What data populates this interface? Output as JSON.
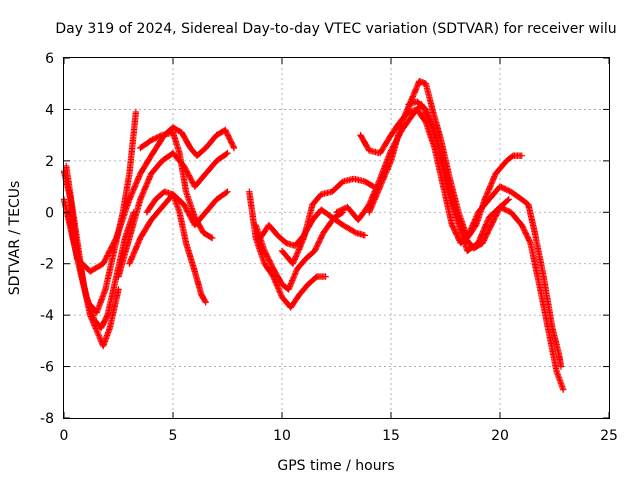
{
  "chart_data": {
    "type": "scatter",
    "title": "Day 319 of 2024, Sidereal Day-to-day VTEC variation (SDTVAR) for receiver wilu",
    "xlabel": "GPS time / hours",
    "ylabel": "SDTVAR / TECUs",
    "xlim": [
      0,
      25
    ],
    "ylim": [
      -8,
      6
    ],
    "xticks": [
      0,
      5,
      10,
      15,
      20,
      25
    ],
    "yticks": [
      -8,
      -6,
      -4,
      -2,
      0,
      2,
      4,
      6
    ],
    "xtick_labels": [
      "0",
      "5",
      "10",
      "15",
      "20",
      "25"
    ],
    "ytick_labels": [
      "-8",
      "-6",
      "-4",
      "-2",
      "0",
      "2",
      "4",
      "6"
    ],
    "grid": true,
    "marker": "plus",
    "color": "#ff0000",
    "series": [
      {
        "name": "track-1",
        "points": [
          [
            0.0,
            1.6
          ],
          [
            0.3,
            0.5
          ],
          [
            0.6,
            -1.5
          ],
          [
            1.0,
            -3.2
          ],
          [
            1.4,
            -4.2
          ],
          [
            1.7,
            -4.5
          ],
          [
            2.0,
            -4.0
          ],
          [
            2.4,
            -2.5
          ],
          [
            2.8,
            -1.0
          ],
          [
            3.2,
            0.0
          ]
        ]
      },
      {
        "name": "track-2",
        "points": [
          [
            0.1,
            1.8
          ],
          [
            0.5,
            -0.5
          ],
          [
            0.9,
            -2.8
          ],
          [
            1.2,
            -4.0
          ],
          [
            1.6,
            -4.8
          ],
          [
            1.8,
            -5.2
          ],
          [
            2.1,
            -4.5
          ],
          [
            2.5,
            -3.0
          ]
        ]
      },
      {
        "name": "track-3",
        "points": [
          [
            0.0,
            0.5
          ],
          [
            0.4,
            -1.0
          ],
          [
            0.8,
            -2.5
          ],
          [
            1.1,
            -3.5
          ],
          [
            1.5,
            -3.9
          ],
          [
            1.9,
            -3.0
          ],
          [
            2.3,
            -1.5
          ],
          [
            2.7,
            0.0
          ],
          [
            3.0,
            1.5
          ],
          [
            3.3,
            3.9
          ]
        ]
      },
      {
        "name": "track-4",
        "points": [
          [
            0.2,
            0.0
          ],
          [
            0.6,
            -1.8
          ],
          [
            1.2,
            -2.3
          ],
          [
            1.8,
            -2.0
          ],
          [
            2.4,
            -1.0
          ],
          [
            3.0,
            0.5
          ],
          [
            3.5,
            1.5
          ],
          [
            4.0,
            2.2
          ],
          [
            4.6,
            3.0
          ],
          [
            5.0,
            3.3
          ],
          [
            5.4,
            3.1
          ],
          [
            5.8,
            2.5
          ],
          [
            6.1,
            2.2
          ],
          [
            6.5,
            2.5
          ],
          [
            7.0,
            3.0
          ],
          [
            7.4,
            3.2
          ],
          [
            7.8,
            2.5
          ]
        ]
      },
      {
        "name": "track-5",
        "points": [
          [
            2.5,
            -2.5
          ],
          [
            3.0,
            -1.0
          ],
          [
            3.5,
            0.5
          ],
          [
            4.0,
            1.5
          ],
          [
            4.5,
            2.0
          ],
          [
            5.0,
            2.3
          ],
          [
            5.5,
            1.8
          ],
          [
            6.0,
            1.0
          ],
          [
            6.5,
            1.5
          ],
          [
            7.0,
            2.0
          ],
          [
            7.5,
            2.3
          ]
        ]
      },
      {
        "name": "track-6",
        "points": [
          [
            3.0,
            -2.0
          ],
          [
            3.5,
            -1.0
          ],
          [
            4.0,
            -0.3
          ],
          [
            4.5,
            0.2
          ],
          [
            5.0,
            0.7
          ],
          [
            5.5,
            0.3
          ],
          [
            6.0,
            -0.5
          ],
          [
            6.5,
            0.0
          ],
          [
            7.0,
            0.5
          ],
          [
            7.5,
            0.8
          ]
        ]
      },
      {
        "name": "track-7",
        "points": [
          [
            3.8,
            0.0
          ],
          [
            4.2,
            0.5
          ],
          [
            4.6,
            0.8
          ],
          [
            5.0,
            0.7
          ],
          [
            5.3,
            0.0
          ],
          [
            5.6,
            -1.2
          ],
          [
            6.0,
            -2.3
          ],
          [
            6.3,
            -3.2
          ],
          [
            6.5,
            -3.5
          ]
        ]
      },
      {
        "name": "track-8",
        "points": [
          [
            3.5,
            2.5
          ],
          [
            4.0,
            2.8
          ],
          [
            4.5,
            3.0
          ],
          [
            5.0,
            3.1
          ],
          [
            5.3,
            2.3
          ],
          [
            5.6,
            0.8
          ],
          [
            6.0,
            -0.2
          ],
          [
            6.4,
            -0.8
          ],
          [
            6.8,
            -1.0
          ]
        ]
      },
      {
        "name": "track-9",
        "points": [
          [
            8.5,
            0.8
          ],
          [
            8.8,
            -1.0
          ],
          [
            9.2,
            -2.0
          ],
          [
            9.6,
            -2.5
          ],
          [
            10.0,
            -3.3
          ],
          [
            10.4,
            -3.7
          ],
          [
            10.8,
            -3.2
          ],
          [
            11.2,
            -2.8
          ],
          [
            11.6,
            -2.5
          ],
          [
            12.0,
            -2.5
          ]
        ]
      },
      {
        "name": "track-10",
        "points": [
          [
            8.8,
            -0.5
          ],
          [
            9.2,
            -1.5
          ],
          [
            9.6,
            -2.2
          ],
          [
            10.0,
            -2.8
          ],
          [
            10.3,
            -3.0
          ],
          [
            10.7,
            -2.2
          ],
          [
            11.1,
            -1.8
          ],
          [
            11.5,
            -1.5
          ],
          [
            11.9,
            -0.8
          ],
          [
            12.4,
            -0.2
          ],
          [
            12.8,
            0.0
          ]
        ]
      },
      {
        "name": "track-11",
        "points": [
          [
            9.0,
            -1.0
          ],
          [
            9.4,
            -0.5
          ],
          [
            9.8,
            -0.9
          ],
          [
            10.2,
            -1.2
          ],
          [
            10.6,
            -1.3
          ],
          [
            11.0,
            -0.9
          ],
          [
            11.4,
            -0.3
          ],
          [
            11.8,
            0.1
          ],
          [
            12.3,
            -0.2
          ],
          [
            12.8,
            -0.5
          ],
          [
            13.4,
            -0.8
          ],
          [
            13.8,
            -0.9
          ]
        ]
      },
      {
        "name": "track-12",
        "points": [
          [
            10.0,
            -1.5
          ],
          [
            10.5,
            -2.0
          ],
          [
            11.0,
            -1.0
          ],
          [
            11.4,
            0.3
          ],
          [
            11.8,
            0.7
          ],
          [
            12.3,
            0.8
          ],
          [
            12.8,
            1.2
          ],
          [
            13.3,
            1.3
          ],
          [
            13.8,
            1.2
          ],
          [
            14.2,
            1.0
          ]
        ]
      },
      {
        "name": "track-13",
        "points": [
          [
            12.5,
            0.0
          ],
          [
            13.0,
            0.2
          ],
          [
            13.5,
            -0.3
          ],
          [
            14.0,
            0.3
          ],
          [
            14.5,
            1.3
          ],
          [
            15.0,
            2.4
          ],
          [
            15.5,
            3.2
          ],
          [
            16.0,
            3.8
          ],
          [
            16.4,
            4.2
          ],
          [
            16.8,
            3.5
          ],
          [
            17.2,
            2.5
          ],
          [
            17.6,
            1.0
          ],
          [
            18.0,
            0.0
          ],
          [
            18.4,
            -1.0
          ],
          [
            18.8,
            -1.4
          ],
          [
            19.2,
            -1.2
          ],
          [
            19.6,
            -0.5
          ],
          [
            20.0,
            0.2
          ],
          [
            20.4,
            0.5
          ]
        ]
      },
      {
        "name": "track-14",
        "points": [
          [
            14.0,
            0.0
          ],
          [
            14.5,
            1.0
          ],
          [
            15.0,
            2.0
          ],
          [
            15.5,
            3.5
          ],
          [
            16.0,
            4.5
          ],
          [
            16.3,
            5.1
          ],
          [
            16.6,
            5.0
          ],
          [
            16.9,
            4.0
          ],
          [
            17.3,
            2.8
          ],
          [
            17.7,
            1.3
          ],
          [
            18.1,
            0.0
          ],
          [
            18.5,
            -1.0
          ],
          [
            18.9,
            -0.5
          ],
          [
            19.3,
            0.5
          ],
          [
            19.8,
            1.5
          ],
          [
            20.3,
            2.0
          ],
          [
            20.6,
            2.2
          ],
          [
            21.0,
            2.2
          ]
        ]
      },
      {
        "name": "track-15",
        "points": [
          [
            13.6,
            3.0
          ],
          [
            14.0,
            2.4
          ],
          [
            14.5,
            2.3
          ],
          [
            15.0,
            3.0
          ],
          [
            15.4,
            3.5
          ],
          [
            15.8,
            3.9
          ],
          [
            16.2,
            4.0
          ],
          [
            16.6,
            3.5
          ],
          [
            17.0,
            2.5
          ],
          [
            17.4,
            1.0
          ],
          [
            17.8,
            -0.5
          ],
          [
            18.2,
            -1.2
          ],
          [
            18.6,
            -0.8
          ],
          [
            19.0,
            0.0
          ],
          [
            19.5,
            0.5
          ],
          [
            20.0,
            1.0
          ],
          [
            20.5,
            0.8
          ],
          [
            21.0,
            0.5
          ],
          [
            21.3,
            0.3
          ],
          [
            21.6,
            -0.8
          ],
          [
            22.0,
            -2.5
          ],
          [
            22.4,
            -4.5
          ],
          [
            22.7,
            -5.5
          ],
          [
            22.8,
            -6.0
          ]
        ]
      },
      {
        "name": "track-16",
        "points": [
          [
            15.8,
            4.2
          ],
          [
            16.2,
            4.3
          ],
          [
            16.6,
            4.0
          ],
          [
            17.0,
            3.2
          ],
          [
            17.5,
            1.5
          ],
          [
            18.0,
            -0.2
          ],
          [
            18.5,
            -1.5
          ],
          [
            19.0,
            -1.2
          ],
          [
            19.5,
            -0.2
          ],
          [
            20.0,
            0.2
          ],
          [
            20.5,
            0.0
          ],
          [
            21.0,
            -0.5
          ],
          [
            21.4,
            -1.2
          ],
          [
            21.8,
            -2.8
          ],
          [
            22.2,
            -4.5
          ],
          [
            22.6,
            -6.2
          ],
          [
            22.9,
            -6.9
          ]
        ]
      }
    ]
  }
}
